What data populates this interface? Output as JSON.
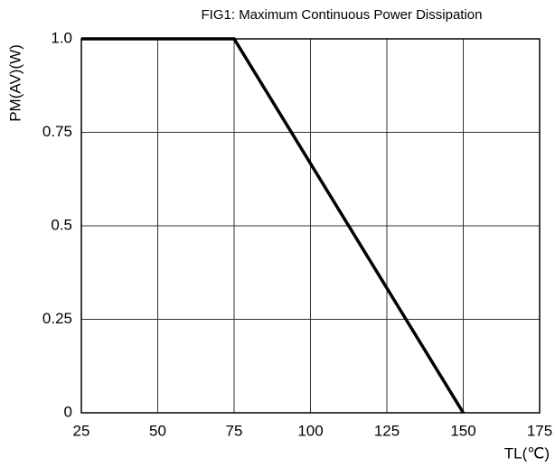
{
  "chart_data": {
    "type": "line",
    "title": "FIG1: Maximum Continuous Power Dissipation",
    "ylabel": "PM(AV)(W)",
    "xlabel": "TL(℃)",
    "x": [
      25,
      75,
      150
    ],
    "series": [
      {
        "color": "#000000",
        "values": [
          1,
          1,
          0
        ]
      }
    ],
    "xlim": [
      25,
      175
    ],
    "xticks": [
      25,
      50,
      75,
      100,
      125,
      150,
      175
    ],
    "ylim": [
      0,
      1
    ],
    "yticks": [
      0,
      0.25,
      0.5,
      0.75,
      {
        "value": 1,
        "label": "1.0"
      }
    ],
    "grid": true
  }
}
